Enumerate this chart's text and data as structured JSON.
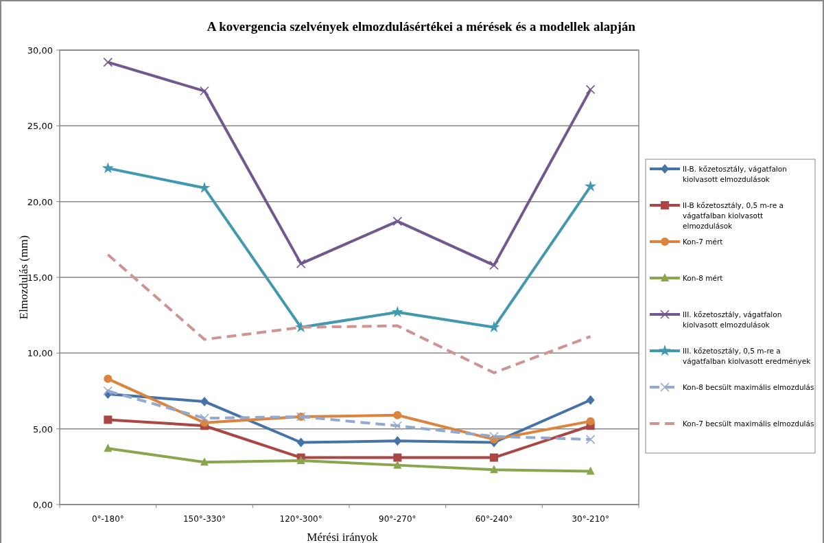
{
  "chart_data": {
    "type": "line",
    "title": "A kovergencia szelvények  elmozdulásértékei a mérések és a modellek alapján",
    "xlabel": "Mérési irányok",
    "ylabel": "Elmozdulás (mm)",
    "categories": [
      "0°-180°",
      "150°-330°",
      "120°-300°",
      "90°-270°",
      "60°-240°",
      "30°-210°"
    ],
    "ylim": [
      0,
      30
    ],
    "yticks": [
      {
        "value": 0,
        "label": "0,00"
      },
      {
        "value": 5,
        "label": "5,00"
      },
      {
        "value": 10,
        "label": "10,00"
      },
      {
        "value": 15,
        "label": "15,00"
      },
      {
        "value": 20,
        "label": "20,00"
      },
      {
        "value": 25,
        "label": "25,00"
      },
      {
        "value": 30,
        "label": "30,00"
      }
    ],
    "grid": "y",
    "legend": "right",
    "series": [
      {
        "name": "II-B. kőzetosztály,  vágatfalon kiolvasott elmozdulások",
        "color": "#4572a7",
        "marker": "diamond",
        "line_style": "solid",
        "values": [
          7.3,
          6.8,
          4.1,
          4.2,
          4.1,
          6.9
        ]
      },
      {
        "name": "II-B kőzetosztály, 0,5 m-re a vágatfalban kiolvasott elmozdulások",
        "color": "#aa4643",
        "marker": "square",
        "line_style": "solid",
        "values": [
          5.6,
          5.2,
          3.1,
          3.1,
          3.1,
          5.2
        ]
      },
      {
        "name": "Kon-7 mért",
        "color": "#db843d",
        "marker": "circle",
        "line_style": "solid",
        "values": [
          8.3,
          5.4,
          5.8,
          5.9,
          4.3,
          5.5
        ]
      },
      {
        "name": "Kon-8 mért",
        "color": "#89a54e",
        "marker": "triangle",
        "line_style": "solid",
        "values": [
          3.7,
          2.8,
          2.9,
          2.6,
          2.3,
          2.2
        ]
      },
      {
        "name": "III. kőzetosztály,  vágatfalon kiolvasott elmozdulások",
        "color": "#71588f",
        "marker": "cross",
        "line_style": "solid",
        "values": [
          29.2,
          27.3,
          15.9,
          18.7,
          15.8,
          27.4
        ]
      },
      {
        "name": "III. kőzetosztály,  0,5 m-re a vágatfalban kiolvasott eredmények",
        "color": "#4198af",
        "marker": "star",
        "line_style": "solid",
        "values": [
          22.2,
          20.9,
          11.7,
          12.7,
          11.7,
          21.0
        ]
      },
      {
        "name": "Kon-8 becsült maximális elmozdulás",
        "color": "#93a9cf",
        "marker": "cross",
        "line_style": "dashed",
        "values": [
          7.5,
          5.7,
          5.8,
          5.2,
          4.5,
          4.3
        ]
      },
      {
        "name": "Kon-7 becsült maximális elmozdulás",
        "color": "#d19392",
        "marker": "none",
        "line_style": "dashed",
        "values": [
          16.5,
          10.9,
          11.7,
          11.8,
          8.7,
          11.1
        ]
      }
    ]
  }
}
